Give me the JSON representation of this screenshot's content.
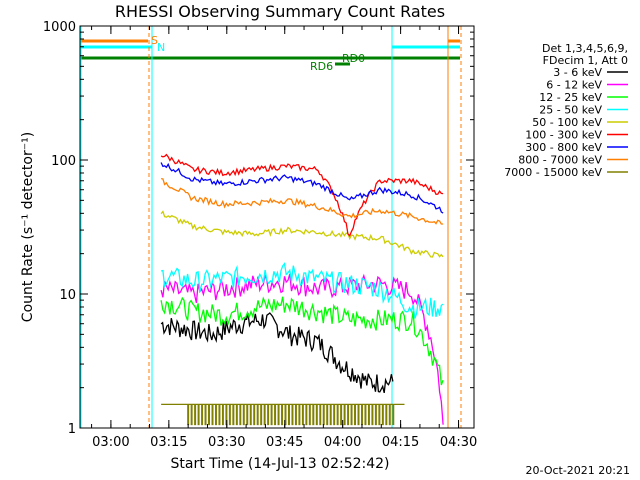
{
  "chart_data": {
    "type": "line",
    "title": "RHESSI Observing Summary Count Rates",
    "xlabel": "Start Time (14-Jul-13 02:52:42)",
    "ylabel": "Count Rate (s⁻¹ detector⁻¹)",
    "yscale": "log",
    "ylim": [
      1,
      1000
    ],
    "xlim_minutes_from_0252": [
      0,
      102
    ],
    "x_ticks": [
      "03:00",
      "03:15",
      "03:30",
      "03:45",
      "04:00",
      "04:15",
      "04:30"
    ],
    "y_ticks": [
      "1",
      "10",
      "100",
      "1000"
    ],
    "legend_header": [
      "Det 1,3,4,5,6,9,",
      "FDecim 1, Att 0"
    ],
    "series": [
      {
        "name": "3 - 6 keV",
        "color": "#000000",
        "x_start": "03:13",
        "x_end": "04:13",
        "levels": [
          6,
          5.5,
          5,
          6,
          6.5,
          5,
          4.5,
          3,
          2.2,
          2.2
        ]
      },
      {
        "name": "6 - 12 keV",
        "color": "#ff00ff",
        "x_start": "03:13",
        "x_end": "04:26",
        "levels": [
          11,
          10,
          11,
          12,
          12.5,
          11,
          11.5,
          12,
          10.5,
          1
        ]
      },
      {
        "name": "12 - 25 keV",
        "color": "#00ff00",
        "x_start": "03:13",
        "x_end": "04:26",
        "levels": [
          9,
          7.5,
          7,
          8,
          8.5,
          7.5,
          6.5,
          6.5,
          6.5,
          2
        ]
      },
      {
        "name": "25 - 50 keV",
        "color": "#00ffff",
        "x_start": "03:13",
        "x_end": "04:26",
        "levels": [
          14,
          12.5,
          13,
          14,
          14.5,
          13,
          12,
          11,
          8,
          8
        ]
      },
      {
        "name": "50 - 100 keV",
        "color": "#cccc00",
        "x_start": "03:13",
        "x_end": "04:26",
        "levels": [
          40,
          32,
          29,
          28,
          30,
          29,
          27,
          26,
          21,
          19
        ]
      },
      {
        "name": "100 - 300 keV",
        "color": "#ff0000",
        "x_start": "03:13",
        "x_end": "04:26",
        "levels": [
          110,
          85,
          80,
          85,
          90,
          85,
          27,
          70,
          70,
          55
        ]
      },
      {
        "name": "300 - 800 keV",
        "color": "#0000ff",
        "x_start": "03:13",
        "x_end": "04:26",
        "levels": [
          95,
          72,
          66,
          70,
          74,
          66,
          50,
          60,
          55,
          42
        ]
      },
      {
        "name": "800 - 7000 keV",
        "color": "#ff7f00",
        "x_start": "03:13",
        "x_end": "04:26",
        "levels": [
          70,
          52,
          47,
          48,
          50,
          45,
          38,
          42,
          38,
          33
        ]
      },
      {
        "name": "7000 - 15000 keV",
        "color": "#808000",
        "x_start": "03:13",
        "x_end": "04:16",
        "levels": [
          1.5,
          1.5,
          1.5,
          1.5,
          1.5,
          1.5,
          1.5,
          1.5,
          1.5,
          1.5
        ]
      }
    ],
    "annotations": {
      "S": {
        "label": "S",
        "color": "#ff7f00"
      },
      "N": {
        "label": "N",
        "color": "#00ffff"
      },
      "RD0": {
        "label": "RD0",
        "color": "#008000"
      },
      "RD6": {
        "label": "RD6",
        "color": "#008000"
      }
    },
    "footer_timestamp": "20-Oct-2021 20:21"
  }
}
